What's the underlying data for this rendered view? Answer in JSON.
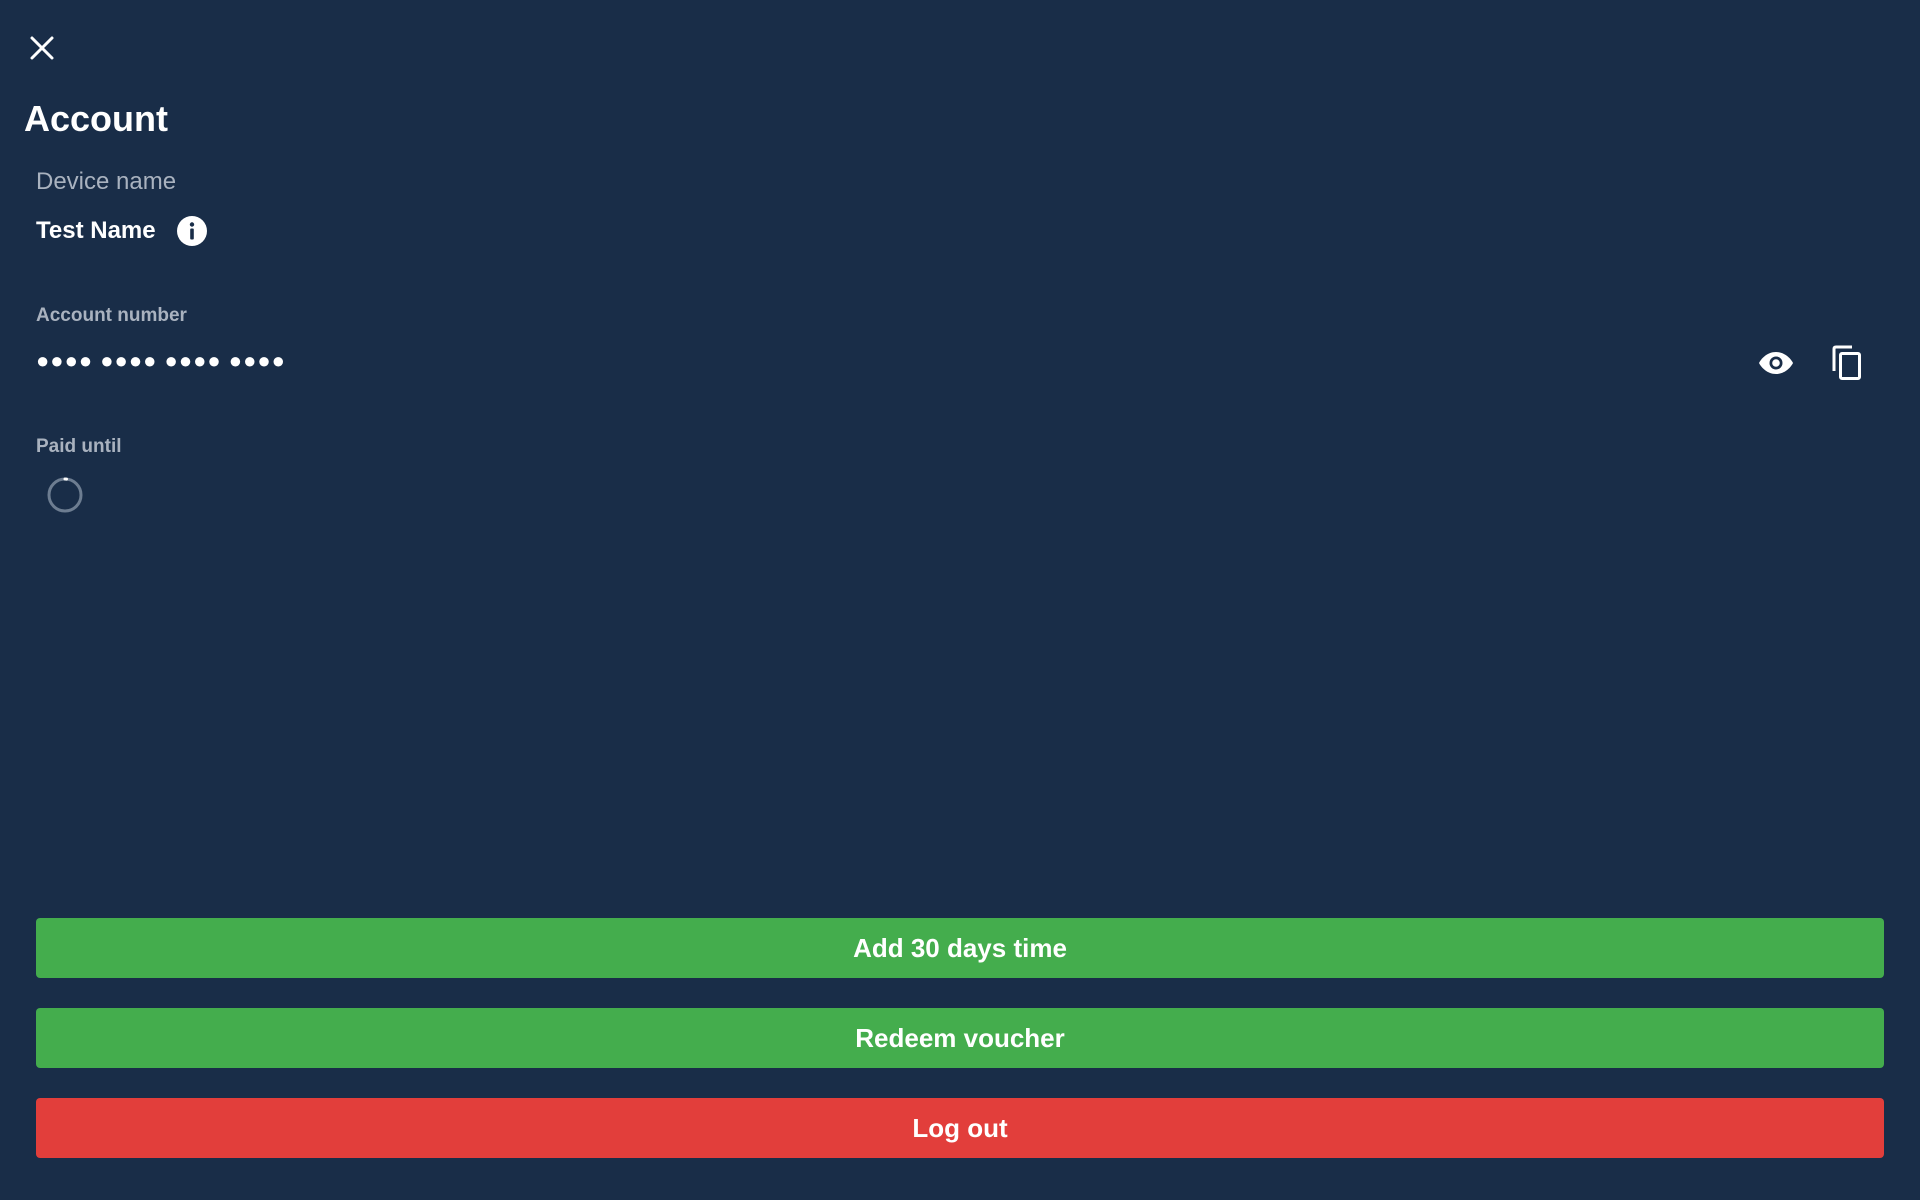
{
  "header": {
    "title": "Account"
  },
  "device": {
    "label": "Device name",
    "value": "Test Name"
  },
  "account_number": {
    "label": "Account number",
    "masked_value": "●●●● ●●●● ●●●● ●●●●"
  },
  "paid_until": {
    "label": "Paid until"
  },
  "actions": {
    "add_time_label": "Add 30 days time",
    "redeem_voucher_label": "Redeem voucher",
    "logout_label": "Log out"
  },
  "colors": {
    "background": "#192d48",
    "success": "#44ad4d",
    "danger": "#e23e3b",
    "muted_text": "#a9b2bf"
  }
}
